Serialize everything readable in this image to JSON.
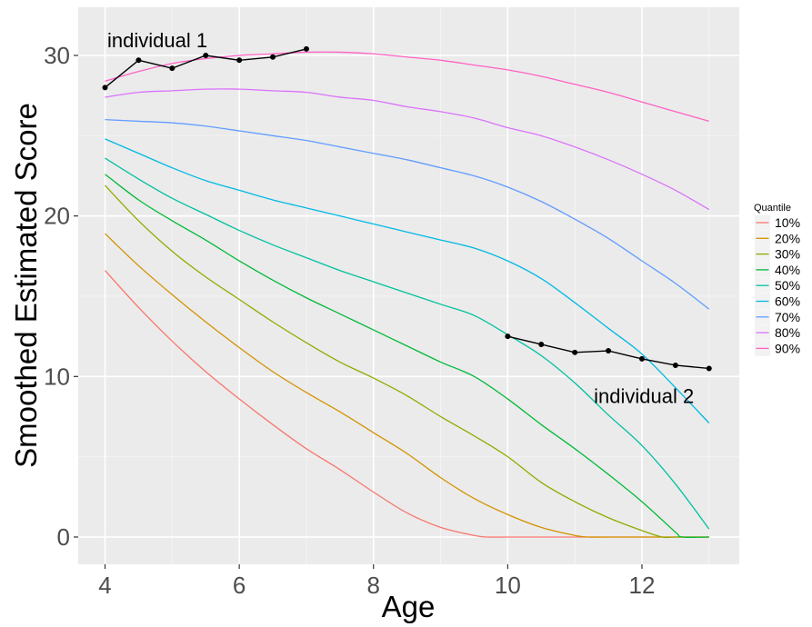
{
  "chart_data": {
    "type": "line",
    "title": "",
    "xlabel": "Age",
    "ylabel": "Smoothed Estimated Score",
    "xlim": [
      3.6,
      13.45
    ],
    "ylim": [
      -1.7,
      33.0
    ],
    "x_ticks": [
      4,
      6,
      8,
      10,
      12
    ],
    "y_ticks": [
      0,
      10,
      20,
      30
    ],
    "grid": true,
    "background": "#EBEBEB",
    "legend": {
      "title": "Quantile",
      "placement": "right"
    },
    "series": [
      {
        "name": "10%",
        "color": "#F8766D",
        "x": [
          4,
          4.5,
          5,
          5.5,
          6,
          6.5,
          7,
          7.5,
          8,
          8.5,
          9,
          9.5,
          9.7,
          10,
          10.5,
          11,
          11.5,
          12,
          12.5,
          13
        ],
        "y": [
          16.6,
          14.3,
          12.2,
          10.3,
          8.6,
          7.0,
          5.5,
          4.2,
          2.8,
          1.5,
          0.6,
          0.1,
          0.0,
          0.0,
          0.0,
          0.0,
          0.0,
          0.0,
          0.0,
          0.0
        ]
      },
      {
        "name": "20%",
        "color": "#D39200",
        "x": [
          4,
          4.5,
          5,
          5.5,
          6,
          6.5,
          7,
          7.5,
          8,
          8.5,
          9,
          9.5,
          10,
          10.5,
          11,
          11.2,
          11.5,
          12,
          12.5,
          13
        ],
        "y": [
          18.9,
          16.9,
          15.1,
          13.4,
          11.8,
          10.3,
          9.0,
          7.8,
          6.5,
          5.2,
          3.7,
          2.4,
          1.4,
          0.6,
          0.1,
          0.0,
          0.0,
          0.0,
          0.0,
          0.0
        ]
      },
      {
        "name": "30%",
        "color": "#93AA00",
        "x": [
          4,
          4.5,
          5,
          5.5,
          6,
          6.5,
          7,
          7.5,
          8,
          8.5,
          9,
          9.5,
          10,
          10.5,
          11,
          11.5,
          12,
          12.3,
          12.5,
          13
        ],
        "y": [
          21.9,
          19.7,
          17.8,
          16.2,
          14.8,
          13.4,
          12.1,
          10.9,
          9.9,
          8.8,
          7.5,
          6.3,
          5.0,
          3.4,
          2.2,
          1.2,
          0.4,
          0.0,
          0.0,
          0.0
        ]
      },
      {
        "name": "40%",
        "color": "#00BA38",
        "x": [
          4,
          4.5,
          5,
          5.5,
          6,
          6.5,
          7,
          7.5,
          8,
          8.5,
          9,
          9.5,
          10,
          10.5,
          11,
          11.5,
          12,
          12.5,
          12.6,
          13
        ],
        "y": [
          22.6,
          21.0,
          19.7,
          18.5,
          17.2,
          16.0,
          14.9,
          13.9,
          12.9,
          11.9,
          10.9,
          10.0,
          8.6,
          7.0,
          5.5,
          3.9,
          2.2,
          0.3,
          0.0,
          0.0
        ]
      },
      {
        "name": "50%",
        "color": "#00C19F",
        "x": [
          4,
          4.5,
          5,
          5.5,
          6,
          6.5,
          7,
          7.5,
          8,
          8.5,
          9,
          9.5,
          10,
          10.5,
          11,
          11.5,
          12,
          12.5,
          13
        ],
        "y": [
          23.6,
          22.3,
          21.1,
          20.1,
          19.1,
          18.2,
          17.4,
          16.6,
          15.9,
          15.2,
          14.5,
          13.8,
          12.6,
          11.3,
          9.6,
          7.6,
          5.7,
          3.3,
          0.5
        ]
      },
      {
        "name": "60%",
        "color": "#00B9E3",
        "x": [
          4,
          4.5,
          5,
          5.5,
          6,
          6.5,
          7,
          7.5,
          8,
          8.5,
          9,
          9.5,
          10,
          10.5,
          11,
          11.5,
          12,
          12.5,
          13
        ],
        "y": [
          24.8,
          23.9,
          23.0,
          22.2,
          21.6,
          21.0,
          20.5,
          20.0,
          19.5,
          19.0,
          18.5,
          18.0,
          17.2,
          16.1,
          14.6,
          13.0,
          11.4,
          9.3,
          7.1
        ]
      },
      {
        "name": "70%",
        "color": "#619CFF",
        "x": [
          4,
          4.5,
          5,
          5.5,
          6,
          6.5,
          7,
          7.5,
          8,
          8.5,
          9,
          9.5,
          10,
          10.5,
          11,
          11.5,
          12,
          12.5,
          13
        ],
        "y": [
          26.0,
          25.9,
          25.8,
          25.6,
          25.3,
          25.0,
          24.7,
          24.3,
          23.9,
          23.5,
          23.0,
          22.5,
          21.8,
          20.9,
          19.8,
          18.6,
          17.2,
          15.8,
          14.2
        ]
      },
      {
        "name": "80%",
        "color": "#DB72FB",
        "x": [
          4,
          4.5,
          5,
          5.5,
          6,
          6.5,
          7,
          7.5,
          8,
          8.5,
          9,
          9.5,
          10,
          10.5,
          11,
          11.5,
          12,
          12.5,
          13
        ],
        "y": [
          27.4,
          27.7,
          27.8,
          27.9,
          27.9,
          27.8,
          27.7,
          27.4,
          27.2,
          26.8,
          26.5,
          26.1,
          25.5,
          25.0,
          24.3,
          23.5,
          22.6,
          21.6,
          20.4
        ]
      },
      {
        "name": "90%",
        "color": "#FF61C3",
        "x": [
          4,
          4.5,
          5,
          5.5,
          6,
          6.5,
          7,
          7.5,
          8,
          8.5,
          9,
          9.5,
          10,
          10.5,
          11,
          11.5,
          12,
          12.5,
          13
        ],
        "y": [
          28.4,
          29.0,
          29.5,
          29.8,
          30.0,
          30.1,
          30.2,
          30.2,
          30.1,
          29.9,
          29.7,
          29.4,
          29.1,
          28.7,
          28.2,
          27.7,
          27.1,
          26.5,
          25.9
        ]
      }
    ],
    "individuals": [
      {
        "label": "individual 1",
        "color": "#000000",
        "x": [
          4,
          4.5,
          5,
          5.5,
          6,
          6.5,
          7
        ],
        "y": [
          28.0,
          29.7,
          29.2,
          30.0,
          29.7,
          29.9,
          30.4
        ]
      },
      {
        "label": "individual 2",
        "color": "#000000",
        "x": [
          10,
          10.5,
          11,
          11.5,
          12,
          12.5,
          13
        ],
        "y": [
          12.5,
          12.0,
          11.5,
          11.6,
          11.1,
          10.7,
          10.5
        ]
      }
    ]
  }
}
